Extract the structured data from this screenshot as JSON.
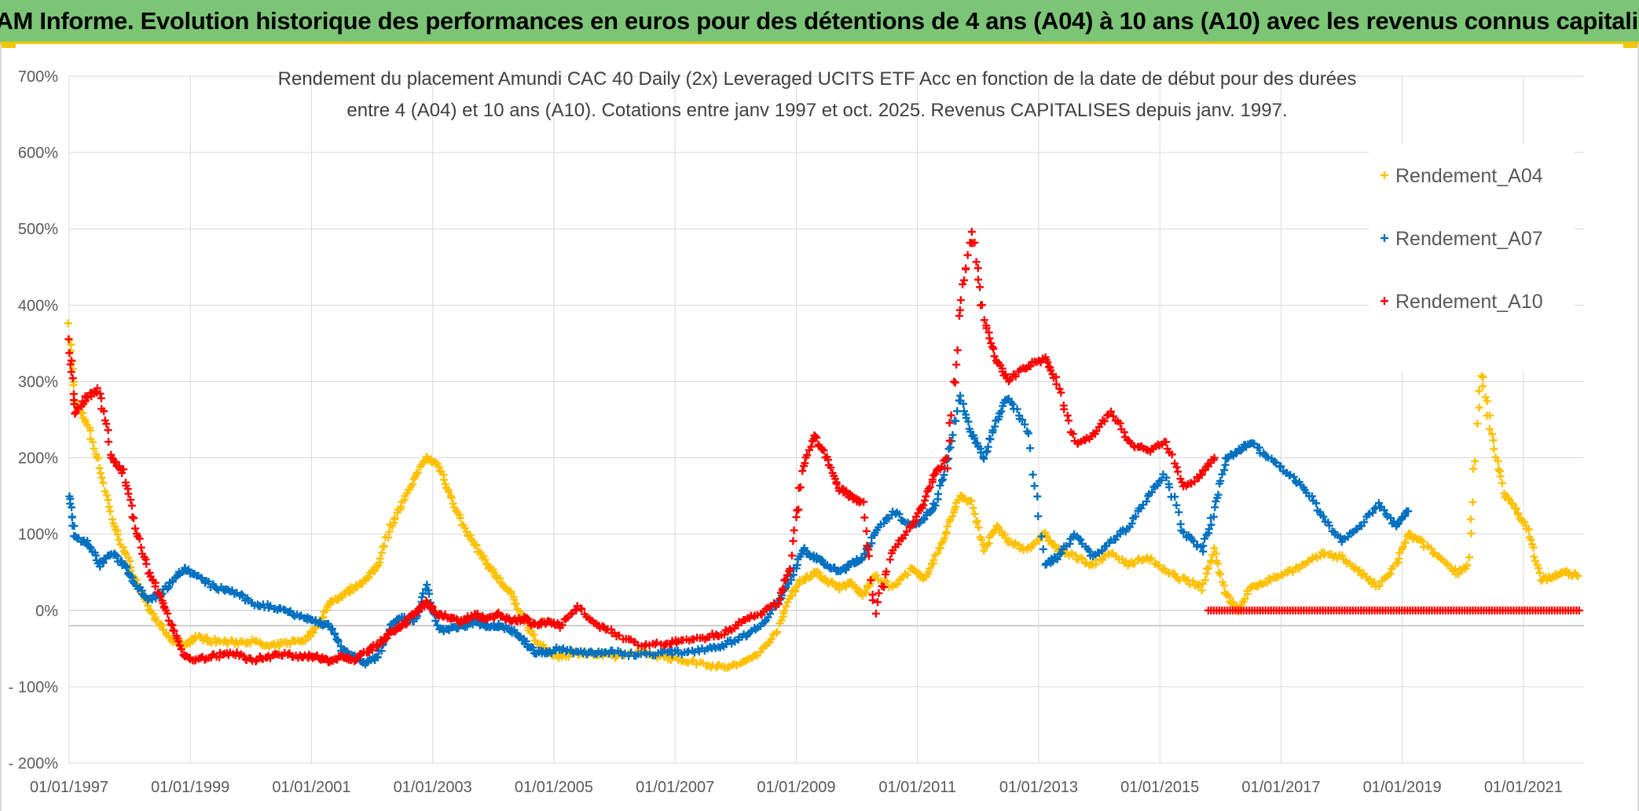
{
  "header": {
    "title": "ADAM Informe. Evolution historique des performances en euros pour des détentions de 4 ans (A04) à 10 ans (A10) avec les revenus connus capitalisés"
  },
  "colors": {
    "A04": "#ffc000",
    "A07": "#0070c0",
    "A10": "#ff0000",
    "banner": "#7cc576",
    "grid": "#d9d9d9"
  },
  "chart_data": {
    "type": "scatter",
    "title_lines": [
      "Rendement du placement Amundi CAC 40 Daily (2x) Leveraged UCITS ETF Acc en fonction de la date de début pour des durées",
      "entre 4 (A04) et 10 ans (A10). Cotations entre janv 1997 et oct. 2025. Revenus CAPITALISES depuis janv. 1997."
    ],
    "y_ticks": [
      {
        "value": 700,
        "label": "700%"
      },
      {
        "value": 600,
        "label": "600%"
      },
      {
        "value": 500,
        "label": "500%"
      },
      {
        "value": 400,
        "label": "400%"
      },
      {
        "value": 300,
        "label": "300%"
      },
      {
        "value": 200,
        "label": "200%"
      },
      {
        "value": 100,
        "label": "100%"
      },
      {
        "value": 0,
        "label": "0%"
      },
      {
        "value": -100,
        "label": "- 100%"
      },
      {
        "value": -200,
        "label": "- 200%"
      }
    ],
    "ylim": [
      -200,
      700
    ],
    "xlim": [
      1997.0,
      2022.0
    ],
    "x_ticks": [
      {
        "value": 1997.0,
        "label": "01/01/1997"
      },
      {
        "value": 1999.0,
        "label": "01/01/1999"
      },
      {
        "value": 2001.0,
        "label": "01/01/2001"
      },
      {
        "value": 2003.0,
        "label": "01/01/2003"
      },
      {
        "value": 2005.0,
        "label": "01/01/2005"
      },
      {
        "value": 2007.0,
        "label": "01/01/2007"
      },
      {
        "value": 2009.0,
        "label": "01/01/2009"
      },
      {
        "value": 2011.0,
        "label": "01/01/2011"
      },
      {
        "value": 2013.0,
        "label": "01/01/2013"
      },
      {
        "value": 2015.0,
        "label": "01/01/2015"
      },
      {
        "value": 2017.0,
        "label": "01/01/2017"
      },
      {
        "value": 2019.0,
        "label": "01/01/2019"
      },
      {
        "value": 2021.0,
        "label": "01/01/2021"
      }
    ],
    "legend_position": "top-right",
    "series": [
      {
        "name": "Rendement_A04",
        "color": "#ffc000",
        "points": [
          [
            1997.0,
            370
          ],
          [
            1997.1,
            270
          ],
          [
            1997.3,
            245
          ],
          [
            1997.5,
            190
          ],
          [
            1997.7,
            120
          ],
          [
            1997.9,
            80
          ],
          [
            1998.1,
            40
          ],
          [
            1998.3,
            5
          ],
          [
            1998.5,
            -20
          ],
          [
            1998.7,
            -40
          ],
          [
            1998.9,
            -45
          ],
          [
            1999.1,
            -35
          ],
          [
            1999.4,
            -40
          ],
          [
            1999.7,
            -42
          ],
          [
            2000.0,
            -40
          ],
          [
            2000.3,
            -48
          ],
          [
            2000.6,
            -42
          ],
          [
            2000.9,
            -38
          ],
          [
            2001.1,
            -20
          ],
          [
            2001.3,
            10
          ],
          [
            2001.5,
            20
          ],
          [
            2001.7,
            30
          ],
          [
            2001.9,
            40
          ],
          [
            2002.1,
            60
          ],
          [
            2002.3,
            110
          ],
          [
            2002.5,
            140
          ],
          [
            2002.7,
            175
          ],
          [
            2002.9,
            200
          ],
          [
            2003.1,
            190
          ],
          [
            2003.3,
            150
          ],
          [
            2003.5,
            110
          ],
          [
            2003.7,
            85
          ],
          [
            2003.9,
            60
          ],
          [
            2004.1,
            40
          ],
          [
            2004.3,
            20
          ],
          [
            2004.5,
            -10
          ],
          [
            2004.7,
            -40
          ],
          [
            2004.9,
            -55
          ],
          [
            2005.1,
            -60
          ],
          [
            2005.4,
            -55
          ],
          [
            2005.7,
            -58
          ],
          [
            2006.0,
            -60
          ],
          [
            2006.4,
            -55
          ],
          [
            2006.8,
            -60
          ],
          [
            2007.1,
            -65
          ],
          [
            2007.5,
            -70
          ],
          [
            2007.8,
            -75
          ],
          [
            2008.1,
            -70
          ],
          [
            2008.4,
            -55
          ],
          [
            2008.7,
            -25
          ],
          [
            2008.9,
            20
          ],
          [
            2009.1,
            40
          ],
          [
            2009.3,
            50
          ],
          [
            2009.5,
            40
          ],
          [
            2009.7,
            30
          ],
          [
            2009.9,
            35
          ],
          [
            2010.1,
            20
          ],
          [
            2010.3,
            45
          ],
          [
            2010.6,
            30
          ],
          [
            2010.9,
            55
          ],
          [
            2011.1,
            40
          ],
          [
            2011.3,
            70
          ],
          [
            2011.5,
            110
          ],
          [
            2011.7,
            150
          ],
          [
            2011.9,
            140
          ],
          [
            2012.1,
            80
          ],
          [
            2012.3,
            110
          ],
          [
            2012.5,
            90
          ],
          [
            2012.8,
            80
          ],
          [
            2013.1,
            100
          ],
          [
            2013.3,
            80
          ],
          [
            2013.6,
            70
          ],
          [
            2013.9,
            60
          ],
          [
            2014.2,
            75
          ],
          [
            2014.5,
            60
          ],
          [
            2014.8,
            70
          ],
          [
            2015.1,
            50
          ],
          [
            2015.4,
            40
          ],
          [
            2015.7,
            30
          ],
          [
            2015.9,
            80
          ],
          [
            2016.1,
            20
          ],
          [
            2016.3,
            0
          ],
          [
            2016.5,
            30
          ],
          [
            2016.8,
            40
          ],
          [
            2017.1,
            50
          ],
          [
            2017.4,
            60
          ],
          [
            2017.7,
            75
          ],
          [
            2018.0,
            70
          ],
          [
            2018.3,
            50
          ],
          [
            2018.6,
            30
          ],
          [
            2018.9,
            60
          ],
          [
            2019.1,
            100
          ],
          [
            2019.3,
            90
          ],
          [
            2019.6,
            70
          ],
          [
            2019.9,
            50
          ],
          [
            2020.1,
            60
          ],
          [
            2020.3,
            310
          ],
          [
            2020.5,
            220
          ],
          [
            2020.7,
            150
          ],
          [
            2020.9,
            130
          ],
          [
            2021.1,
            100
          ],
          [
            2021.3,
            40
          ],
          [
            2021.5,
            45
          ],
          [
            2021.7,
            50
          ],
          [
            2021.9,
            45
          ]
        ]
      },
      {
        "name": "Rendement_A07",
        "color": "#0070c0",
        "points": [
          [
            1997.0,
            150
          ],
          [
            1997.1,
            95
          ],
          [
            1997.3,
            90
          ],
          [
            1997.5,
            60
          ],
          [
            1997.7,
            75
          ],
          [
            1997.9,
            60
          ],
          [
            1998.1,
            35
          ],
          [
            1998.3,
            15
          ],
          [
            1998.5,
            20
          ],
          [
            1998.7,
            40
          ],
          [
            1998.9,
            55
          ],
          [
            1999.1,
            45
          ],
          [
            1999.4,
            30
          ],
          [
            1999.7,
            25
          ],
          [
            2000.0,
            10
          ],
          [
            2000.3,
            5
          ],
          [
            2000.6,
            0
          ],
          [
            2000.9,
            -10
          ],
          [
            2001.1,
            -15
          ],
          [
            2001.3,
            -20
          ],
          [
            2001.5,
            -50
          ],
          [
            2001.7,
            -60
          ],
          [
            2001.9,
            -70
          ],
          [
            2002.1,
            -60
          ],
          [
            2002.3,
            -20
          ],
          [
            2002.5,
            -10
          ],
          [
            2002.7,
            -15
          ],
          [
            2002.9,
            30
          ],
          [
            2003.1,
            -25
          ],
          [
            2003.3,
            -25
          ],
          [
            2003.5,
            -20
          ],
          [
            2003.7,
            -15
          ],
          [
            2003.9,
            -20
          ],
          [
            2004.1,
            -20
          ],
          [
            2004.3,
            -25
          ],
          [
            2004.5,
            -40
          ],
          [
            2004.7,
            -55
          ],
          [
            2004.9,
            -55
          ],
          [
            2005.1,
            -50
          ],
          [
            2005.4,
            -55
          ],
          [
            2005.7,
            -55
          ],
          [
            2006.0,
            -55
          ],
          [
            2006.4,
            -58
          ],
          [
            2006.8,
            -55
          ],
          [
            2007.1,
            -55
          ],
          [
            2007.5,
            -50
          ],
          [
            2007.8,
            -45
          ],
          [
            2008.1,
            -35
          ],
          [
            2008.4,
            -20
          ],
          [
            2008.7,
            10
          ],
          [
            2008.9,
            40
          ],
          [
            2009.1,
            80
          ],
          [
            2009.3,
            70
          ],
          [
            2009.5,
            60
          ],
          [
            2009.7,
            50
          ],
          [
            2009.9,
            60
          ],
          [
            2010.1,
            70
          ],
          [
            2010.3,
            100
          ],
          [
            2010.6,
            130
          ],
          [
            2010.9,
            110
          ],
          [
            2011.1,
            120
          ],
          [
            2011.3,
            140
          ],
          [
            2011.5,
            200
          ],
          [
            2011.7,
            280
          ],
          [
            2011.9,
            230
          ],
          [
            2012.1,
            200
          ],
          [
            2012.3,
            250
          ],
          [
            2012.5,
            280
          ],
          [
            2012.8,
            240
          ],
          [
            2013.1,
            60
          ],
          [
            2013.3,
            70
          ],
          [
            2013.6,
            100
          ],
          [
            2013.9,
            70
          ],
          [
            2014.2,
            90
          ],
          [
            2014.5,
            110
          ],
          [
            2014.8,
            150
          ],
          [
            2015.1,
            180
          ],
          [
            2015.4,
            100
          ],
          [
            2015.7,
            80
          ],
          [
            2015.9,
            130
          ],
          [
            2016.1,
            200
          ],
          [
            2016.3,
            210
          ],
          [
            2016.5,
            220
          ],
          [
            2016.8,
            200
          ],
          [
            2017.1,
            180
          ],
          [
            2017.4,
            160
          ],
          [
            2017.7,
            120
          ],
          [
            2018.0,
            90
          ],
          [
            2018.3,
            110
          ],
          [
            2018.6,
            140
          ],
          [
            2018.9,
            110
          ],
          [
            2019.1,
            130
          ]
        ]
      },
      {
        "name": "Rendement_A10",
        "color": "#ff0000",
        "points": [
          [
            1997.0,
            350
          ],
          [
            1997.1,
            260
          ],
          [
            1997.3,
            280
          ],
          [
            1997.5,
            290
          ],
          [
            1997.7,
            200
          ],
          [
            1997.9,
            180
          ],
          [
            1998.1,
            110
          ],
          [
            1998.3,
            50
          ],
          [
            1998.5,
            20
          ],
          [
            1998.7,
            -20
          ],
          [
            1998.9,
            -60
          ],
          [
            1999.1,
            -65
          ],
          [
            1999.4,
            -60
          ],
          [
            1999.7,
            -55
          ],
          [
            2000.0,
            -65
          ],
          [
            2000.3,
            -60
          ],
          [
            2000.6,
            -58
          ],
          [
            2000.9,
            -60
          ],
          [
            2001.1,
            -62
          ],
          [
            2001.3,
            -65
          ],
          [
            2001.5,
            -60
          ],
          [
            2001.7,
            -65
          ],
          [
            2001.9,
            -55
          ],
          [
            2002.1,
            -45
          ],
          [
            2002.3,
            -30
          ],
          [
            2002.5,
            -20
          ],
          [
            2002.7,
            -5
          ],
          [
            2002.9,
            10
          ],
          [
            2003.1,
            -5
          ],
          [
            2003.3,
            -10
          ],
          [
            2003.5,
            -15
          ],
          [
            2003.7,
            -5
          ],
          [
            2003.9,
            -10
          ],
          [
            2004.1,
            -5
          ],
          [
            2004.3,
            -15
          ],
          [
            2004.5,
            -10
          ],
          [
            2004.7,
            -20
          ],
          [
            2004.9,
            -15
          ],
          [
            2005.1,
            -20
          ],
          [
            2005.4,
            5
          ],
          [
            2005.7,
            -20
          ],
          [
            2006.0,
            -30
          ],
          [
            2006.4,
            -45
          ],
          [
            2006.8,
            -45
          ],
          [
            2007.1,
            -40
          ],
          [
            2007.5,
            -35
          ],
          [
            2007.8,
            -30
          ],
          [
            2008.1,
            -15
          ],
          [
            2008.4,
            -5
          ],
          [
            2008.7,
            10
          ],
          [
            2008.9,
            60
          ],
          [
            2009.1,
            180
          ],
          [
            2009.3,
            230
          ],
          [
            2009.5,
            200
          ],
          [
            2009.7,
            160
          ],
          [
            2009.9,
            150
          ],
          [
            2010.1,
            140
          ],
          [
            2010.3,
            0
          ],
          [
            2010.6,
            80
          ],
          [
            2010.9,
            110
          ],
          [
            2011.1,
            140
          ],
          [
            2011.3,
            180
          ],
          [
            2011.5,
            200
          ],
          [
            2011.7,
            400
          ],
          [
            2011.9,
            500
          ],
          [
            2012.1,
            380
          ],
          [
            2012.3,
            330
          ],
          [
            2012.5,
            300
          ],
          [
            2012.8,
            320
          ],
          [
            2013.1,
            330
          ],
          [
            2013.3,
            300
          ],
          [
            2013.6,
            220
          ],
          [
            2013.9,
            230
          ],
          [
            2014.2,
            260
          ],
          [
            2014.5,
            220
          ],
          [
            2014.8,
            210
          ],
          [
            2015.1,
            220
          ],
          [
            2015.4,
            160
          ],
          [
            2015.7,
            180
          ],
          [
            2015.9,
            200
          ]
        ]
      }
    ],
    "flat_segment": {
      "series": "Rendement_A10",
      "x_start": 2015.8,
      "x_end": 2021.95,
      "value": 0
    }
  }
}
